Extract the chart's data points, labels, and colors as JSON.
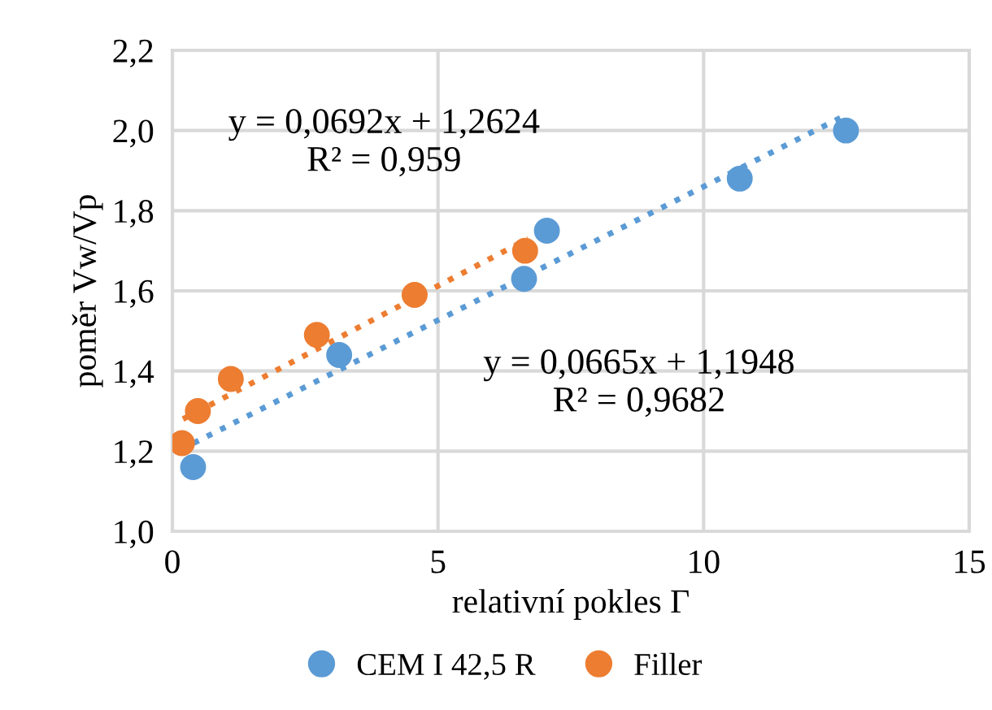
{
  "chart_data": {
    "type": "scatter",
    "xlabel": "relativní pokles Γ",
    "ylabel": "poměr Vw/Vp",
    "series": [
      {
        "name": "CEM I 42,5 R",
        "color": "#5b9bd5",
        "x": [
          0.39,
          3.14,
          6.62,
          7.05,
          10.68,
          12.68
        ],
        "values": [
          1.16,
          1.44,
          1.63,
          1.75,
          1.88,
          2.0
        ]
      },
      {
        "name": "Filler",
        "color": "#ed7d31",
        "x": [
          0.18,
          0.48,
          1.1,
          2.72,
          4.56,
          6.64
        ],
        "values": [
          1.22,
          1.3,
          1.38,
          1.49,
          1.59,
          1.7
        ]
      },
      {
        "color": "#5b9bd5",
        "type": "line",
        "marker": "none",
        "line_style": "dotted",
        "x": [
          0.4,
          12.7
        ],
        "values": [
          1.22,
          2.04
        ]
      },
      {
        "color": "#ed7d31",
        "type": "line",
        "marker": "none",
        "line_style": "dotted",
        "x": [
          0.2,
          6.7
        ],
        "values": [
          1.28,
          1.73
        ]
      }
    ],
    "annotations": [
      "y = 0,0692x + 1,2624\nR² = 0,959",
      "y = 0,0665x + 1,1948\nR² = 0,9682"
    ],
    "xlim": [
      0,
      15
    ],
    "xticks": [
      0,
      5,
      10,
      15
    ],
    "ylim": [
      1.0,
      2.2
    ],
    "yticks": [
      {
        "value": 1.0,
        "label": "1,0"
      },
      {
        "value": 1.2,
        "label": "1,2"
      },
      {
        "value": 1.4,
        "label": "1,4"
      },
      {
        "value": 1.6,
        "label": "1,6"
      },
      {
        "value": 1.8,
        "label": "1,8"
      },
      {
        "value": 2.0,
        "label": "2,0"
      },
      {
        "value": 2.2,
        "label": "2,2"
      }
    ],
    "grid": true,
    "legend": "bottom",
    "marker": "circle"
  }
}
